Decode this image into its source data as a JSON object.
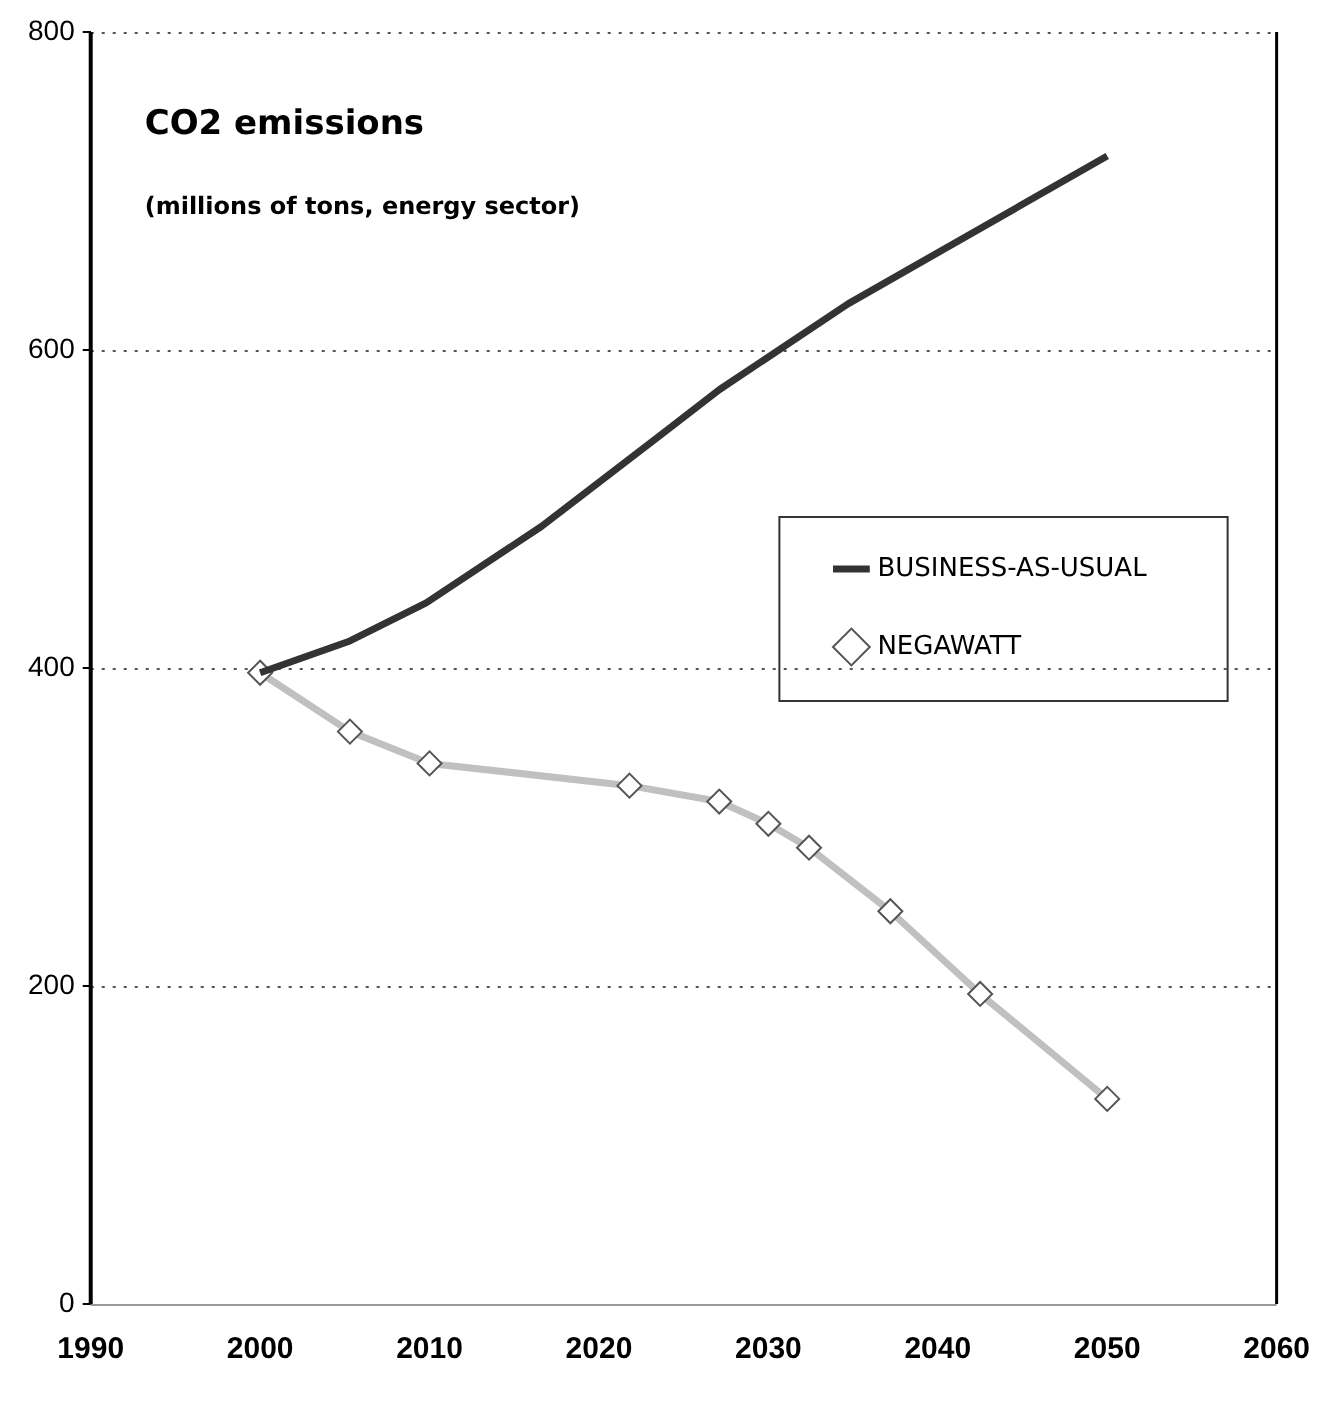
{
  "chart_data": {
    "type": "line",
    "title": "CO2 emissions",
    "subtitle": "(millions of tons, energy sector)",
    "xlim": [
      1990,
      2060
    ],
    "xticks": [
      1990,
      2000,
      2010,
      2020,
      2030,
      2040,
      2050,
      2060
    ],
    "ylim": [
      0,
      800
    ],
    "yticks": [
      0,
      200,
      400,
      600,
      800
    ],
    "grid": "y",
    "legend": "right",
    "series": [
      {
        "name": "BUSINESS-AS-USUAL",
        "color": "#333333",
        "marker": "none",
        "x": [
          2000,
          2005.3,
          2009.8,
          2016.6,
          2023.7,
          2027.1,
          2034.7,
          2050
        ],
        "values": [
          397,
          417,
          441,
          489,
          547,
          575,
          629,
          722
        ]
      },
      {
        "name": "NEGAWATT",
        "color": "#c0c0c0",
        "marker": "diamond",
        "x": [
          2000,
          2005.3,
          2010,
          2021.8,
          2027.1,
          2030,
          2032.4,
          2037.2,
          2042.5,
          2050
        ],
        "values": [
          397,
          360,
          340,
          326,
          316,
          302,
          287,
          247,
          195,
          129
        ]
      }
    ]
  }
}
